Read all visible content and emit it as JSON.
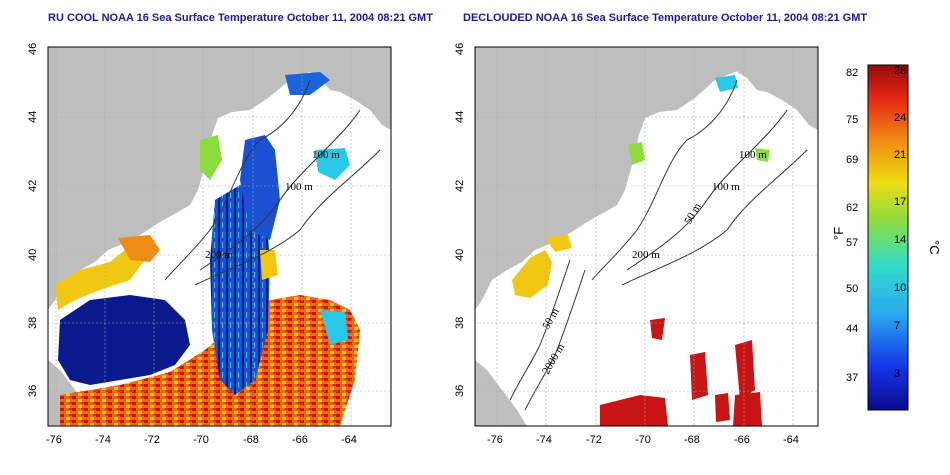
{
  "panels": [
    {
      "title": "RU COOL NOAA 16 Sea Surface Temperature October 11, 2004 08:21 GMT",
      "contour_labels": [
        "100 m",
        "100 m",
        "200 m"
      ]
    },
    {
      "title": "DECLOUDED NOAA 16 Sea Surface Temperature October 11, 2004 08:21 GMT",
      "contour_labels": [
        "100 m",
        "100 m",
        "50 m",
        "200 m",
        "50 m",
        "2000 m"
      ]
    }
  ],
  "axes": {
    "x_ticks": [
      "-76",
      "-74",
      "-72",
      "-70",
      "-68",
      "-66",
      "-64"
    ],
    "y_ticks": [
      "36",
      "38",
      "40",
      "42",
      "44",
      "46"
    ]
  },
  "colorbar": {
    "fahrenheit_ticks": [
      "82",
      "75",
      "69",
      "62",
      "57",
      "50",
      "44",
      "37"
    ],
    "celsius_ticks": [
      "28",
      "24",
      "21",
      "17",
      "14",
      "10",
      "7",
      "3"
    ],
    "fahrenheit_label": "°F",
    "celsius_label": "°C"
  },
  "colors": {
    "land": "#bebebe",
    "deep_cold": "#0a1a8c",
    "cold": "#1a64dc",
    "cool": "#28c8e6",
    "mild": "#8cdc3c",
    "warm": "#f0c814",
    "hot": "#f06414",
    "very_hot": "#c81414"
  }
}
